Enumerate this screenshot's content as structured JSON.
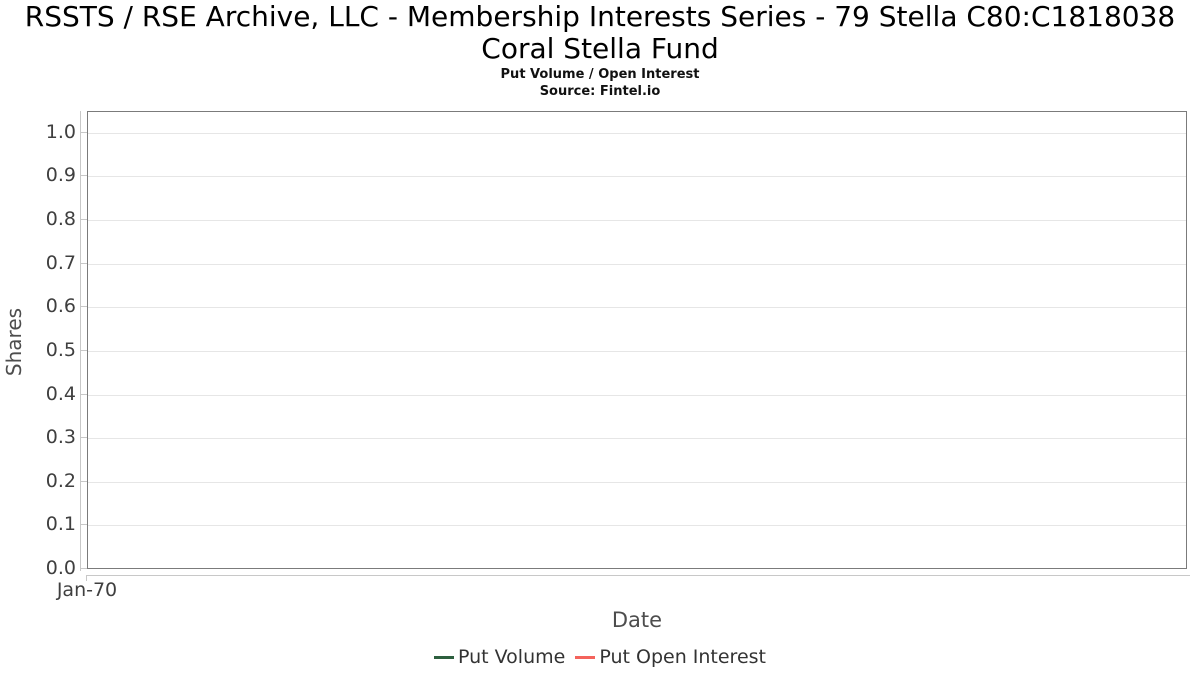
{
  "title": {
    "line1": "RSSTS / RSE Archive, LLC - Membership Interests Series - 79 Stella C80:C1818038",
    "line2": "Coral Stella Fund"
  },
  "subtitle": "Put Volume / Open Interest",
  "source": "Source: Fintel.io",
  "chart_data": {
    "type": "line",
    "title": "RSSTS / RSE Archive, LLC - Membership Interests Series - 79 Stella C80:C1818038 Coral Stella Fund",
    "subtitle": "Put Volume / Open Interest",
    "source": "Source: Fintel.io",
    "xlabel": "Date",
    "ylabel": "Shares",
    "x_ticks": [
      "Jan-70"
    ],
    "y_ticks": [
      "0.0",
      "0.1",
      "0.2",
      "0.3",
      "0.4",
      "0.5",
      "0.6",
      "0.7",
      "0.8",
      "0.9",
      "1.0"
    ],
    "ylim": [
      0,
      1.05
    ],
    "grid": true,
    "legend_position": "bottom",
    "series": [
      {
        "name": "Put Volume",
        "color": "#2d5f3e",
        "x": [],
        "values": []
      },
      {
        "name": "Put Open Interest",
        "color": "#f4635c",
        "x": [],
        "values": []
      }
    ]
  },
  "colors": {
    "plot_border": "#7b7b7b",
    "gridline": "#e6e6e6",
    "axis_line": "#c8c8c8",
    "tick_label": "#3f3f3f",
    "axis_title": "#4d4d4d",
    "legend_text": "#333333",
    "background": "#ffffff"
  }
}
